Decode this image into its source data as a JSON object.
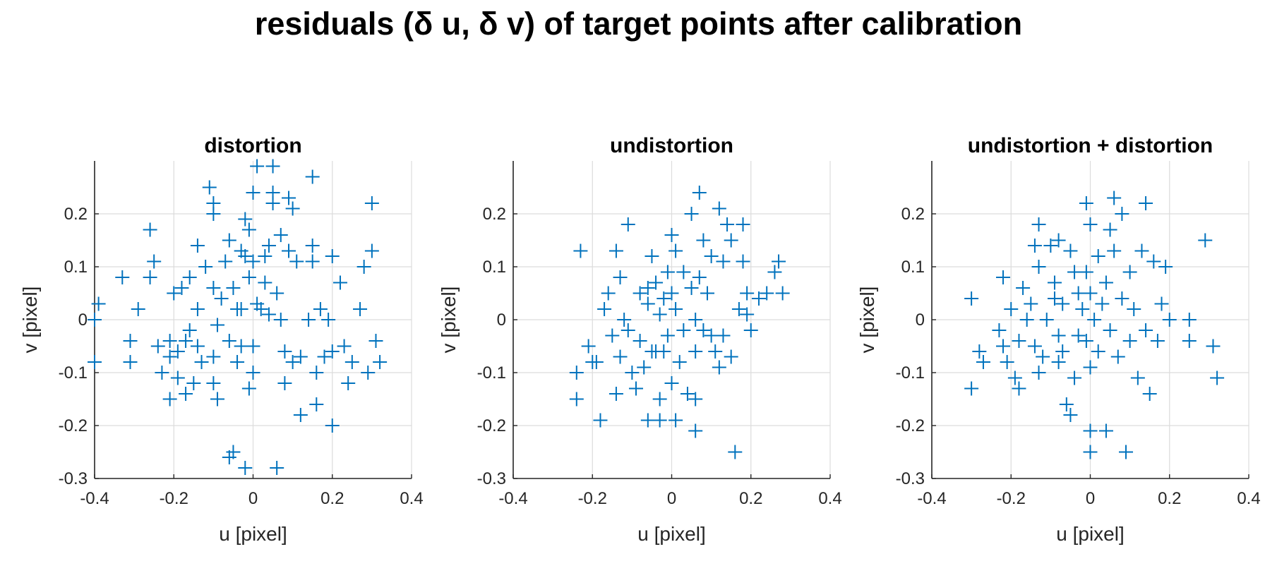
{
  "figure": {
    "suptitle": "residuals (δ u, δ v) of target points after calibration"
  },
  "colors": {
    "marker": "#0072BD",
    "grid": "#dcdcdc",
    "axis": "#262626",
    "text": "#262626"
  },
  "chart_data": [
    {
      "type": "scatter",
      "marker": "plus",
      "title": "distortion",
      "xlabel": "u [pixel]",
      "ylabel": "v [pixel]",
      "xlim": [
        -0.4,
        0.4
      ],
      "ylim": [
        -0.3,
        0.3
      ],
      "xticks": [
        -0.4,
        -0.2,
        0,
        0.2,
        0.4
      ],
      "yticks": [
        -0.3,
        -0.2,
        -0.1,
        0,
        0.1,
        0.2
      ],
      "xtick_labels": [
        "-0.4",
        "-0.2",
        "0",
        "0.2",
        "0.4"
      ],
      "ytick_labels": [
        "-0.3",
        "-0.2",
        "-0.1",
        "0",
        "0.1",
        "0.2"
      ],
      "grid": true,
      "points": [
        [
          -0.39,
          0.03
        ],
        [
          -0.4,
          0.0
        ],
        [
          -0.4,
          -0.08
        ],
        [
          -0.33,
          0.08
        ],
        [
          -0.31,
          -0.04
        ],
        [
          -0.31,
          -0.08
        ],
        [
          -0.29,
          0.02
        ],
        [
          -0.26,
          0.17
        ],
        [
          -0.26,
          0.08
        ],
        [
          -0.25,
          0.11
        ],
        [
          -0.24,
          -0.05
        ],
        [
          -0.23,
          -0.1
        ],
        [
          -0.21,
          -0.04
        ],
        [
          -0.21,
          -0.07
        ],
        [
          -0.21,
          -0.15
        ],
        [
          -0.2,
          0.05
        ],
        [
          -0.19,
          -0.06
        ],
        [
          -0.19,
          -0.11
        ],
        [
          -0.18,
          0.06
        ],
        [
          -0.17,
          -0.04
        ],
        [
          -0.17,
          -0.14
        ],
        [
          -0.16,
          0.08
        ],
        [
          -0.16,
          -0.02
        ],
        [
          -0.15,
          -0.12
        ],
        [
          -0.14,
          -0.05
        ],
        [
          -0.14,
          0.02
        ],
        [
          -0.14,
          0.14
        ],
        [
          -0.13,
          -0.08
        ],
        [
          -0.12,
          0.1
        ],
        [
          -0.11,
          0.25
        ],
        [
          -0.1,
          0.22
        ],
        [
          -0.1,
          0.2
        ],
        [
          -0.1,
          0.06
        ],
        [
          -0.1,
          -0.07
        ],
        [
          -0.1,
          -0.12
        ],
        [
          -0.09,
          -0.15
        ],
        [
          -0.09,
          -0.01
        ],
        [
          -0.08,
          0.04
        ],
        [
          -0.07,
          0.11
        ],
        [
          -0.06,
          0.15
        ],
        [
          -0.06,
          -0.04
        ],
        [
          -0.06,
          -0.26
        ],
        [
          -0.05,
          -0.25
        ],
        [
          -0.05,
          0.06
        ],
        [
          -0.04,
          0.02
        ],
        [
          -0.04,
          -0.08
        ],
        [
          -0.03,
          0.13
        ],
        [
          -0.03,
          0.02
        ],
        [
          -0.03,
          -0.05
        ],
        [
          -0.02,
          0.19
        ],
        [
          -0.02,
          0.12
        ],
        [
          -0.02,
          -0.28
        ],
        [
          -0.01,
          0.17
        ],
        [
          -0.01,
          0.08
        ],
        [
          -0.01,
          -0.13
        ],
        [
          0.0,
          0.24
        ],
        [
          0.0,
          0.11
        ],
        [
          0.0,
          -0.05
        ],
        [
          0.0,
          -0.1
        ],
        [
          0.01,
          0.29
        ],
        [
          0.01,
          0.03
        ],
        [
          0.02,
          0.02
        ],
        [
          0.03,
          0.12
        ],
        [
          0.03,
          0.07
        ],
        [
          0.04,
          0.14
        ],
        [
          0.04,
          0.01
        ],
        [
          0.05,
          0.29
        ],
        [
          0.05,
          0.24
        ],
        [
          0.05,
          0.22
        ],
        [
          0.06,
          0.05
        ],
        [
          0.06,
          -0.28
        ],
        [
          0.07,
          0.16
        ],
        [
          0.07,
          0.0
        ],
        [
          0.08,
          -0.06
        ],
        [
          0.08,
          -0.12
        ],
        [
          0.09,
          0.23
        ],
        [
          0.09,
          0.13
        ],
        [
          0.1,
          0.21
        ],
        [
          0.1,
          -0.08
        ],
        [
          0.11,
          0.11
        ],
        [
          0.12,
          -0.07
        ],
        [
          0.12,
          -0.18
        ],
        [
          0.14,
          0.0
        ],
        [
          0.15,
          0.27
        ],
        [
          0.15,
          0.14
        ],
        [
          0.15,
          0.11
        ],
        [
          0.16,
          -0.1
        ],
        [
          0.16,
          -0.16
        ],
        [
          0.17,
          0.02
        ],
        [
          0.18,
          -0.07
        ],
        [
          0.19,
          0.0
        ],
        [
          0.2,
          0.12
        ],
        [
          0.2,
          -0.06
        ],
        [
          0.2,
          -0.2
        ],
        [
          0.22,
          0.07
        ],
        [
          0.23,
          -0.05
        ],
        [
          0.24,
          -0.12
        ],
        [
          0.25,
          -0.08
        ],
        [
          0.27,
          0.02
        ],
        [
          0.28,
          0.1
        ],
        [
          0.29,
          -0.1
        ],
        [
          0.3,
          0.22
        ],
        [
          0.3,
          0.13
        ],
        [
          0.31,
          -0.04
        ],
        [
          0.32,
          -0.08
        ]
      ]
    },
    {
      "type": "scatter",
      "marker": "plus",
      "title": "undistortion",
      "xlabel": "u [pixel]",
      "ylabel": "v [pixel]",
      "xlim": [
        -0.4,
        0.4
      ],
      "ylim": [
        -0.3,
        0.3
      ],
      "xticks": [
        -0.4,
        -0.2,
        0,
        0.2,
        0.4
      ],
      "yticks": [
        -0.3,
        -0.2,
        -0.1,
        0,
        0.1,
        0.2
      ],
      "xtick_labels": [
        "-0.4",
        "-0.2",
        "0",
        "0.2",
        "0.4"
      ],
      "ytick_labels": [
        "-0.3",
        "-0.2",
        "-0.1",
        "0",
        "0.1",
        "0.2"
      ],
      "grid": true,
      "points": [
        [
          -0.23,
          0.13
        ],
        [
          -0.24,
          -0.1
        ],
        [
          -0.24,
          -0.15
        ],
        [
          -0.21,
          -0.05
        ],
        [
          -0.2,
          -0.08
        ],
        [
          -0.19,
          -0.08
        ],
        [
          -0.18,
          -0.19
        ],
        [
          -0.17,
          0.02
        ],
        [
          -0.16,
          0.05
        ],
        [
          -0.15,
          -0.03
        ],
        [
          -0.14,
          0.13
        ],
        [
          -0.14,
          -0.14
        ],
        [
          -0.13,
          0.08
        ],
        [
          -0.13,
          -0.07
        ],
        [
          -0.12,
          0.0
        ],
        [
          -0.11,
          0.18
        ],
        [
          -0.11,
          -0.02
        ],
        [
          -0.1,
          -0.1
        ],
        [
          -0.09,
          -0.13
        ],
        [
          -0.08,
          0.05
        ],
        [
          -0.08,
          -0.04
        ],
        [
          -0.07,
          -0.09
        ],
        [
          -0.06,
          0.03
        ],
        [
          -0.06,
          0.06
        ],
        [
          -0.06,
          -0.19
        ],
        [
          -0.05,
          0.12
        ],
        [
          -0.05,
          -0.06
        ],
        [
          -0.04,
          -0.06
        ],
        [
          -0.04,
          0.07
        ],
        [
          -0.03,
          0.01
        ],
        [
          -0.03,
          -0.15
        ],
        [
          -0.03,
          -0.19
        ],
        [
          -0.02,
          0.04
        ],
        [
          -0.02,
          -0.06
        ],
        [
          -0.01,
          0.09
        ],
        [
          -0.01,
          -0.03
        ],
        [
          0.0,
          0.16
        ],
        [
          0.0,
          0.05
        ],
        [
          0.0,
          -0.12
        ],
        [
          0.01,
          0.13
        ],
        [
          0.01,
          0.02
        ],
        [
          0.01,
          -0.19
        ],
        [
          0.02,
          -0.08
        ],
        [
          0.03,
          0.09
        ],
        [
          0.03,
          -0.02
        ],
        [
          0.04,
          -0.14
        ],
        [
          0.05,
          0.2
        ],
        [
          0.05,
          0.06
        ],
        [
          0.06,
          0.0
        ],
        [
          0.06,
          -0.06
        ],
        [
          0.06,
          -0.15
        ],
        [
          0.06,
          -0.21
        ],
        [
          0.07,
          0.24
        ],
        [
          0.07,
          0.08
        ],
        [
          0.08,
          0.15
        ],
        [
          0.08,
          -0.02
        ],
        [
          0.09,
          0.05
        ],
        [
          0.1,
          0.12
        ],
        [
          0.1,
          -0.03
        ],
        [
          0.11,
          -0.06
        ],
        [
          0.12,
          0.21
        ],
        [
          0.12,
          -0.09
        ],
        [
          0.13,
          0.11
        ],
        [
          0.13,
          -0.03
        ],
        [
          0.14,
          0.18
        ],
        [
          0.15,
          0.15
        ],
        [
          0.15,
          -0.07
        ],
        [
          0.16,
          -0.25
        ],
        [
          0.17,
          0.02
        ],
        [
          0.18,
          0.18
        ],
        [
          0.18,
          0.11
        ],
        [
          0.19,
          0.05
        ],
        [
          0.19,
          0.01
        ],
        [
          0.2,
          -0.02
        ],
        [
          0.22,
          0.04
        ],
        [
          0.24,
          0.05
        ],
        [
          0.26,
          0.09
        ],
        [
          0.27,
          0.11
        ],
        [
          0.28,
          0.05
        ]
      ]
    },
    {
      "type": "scatter",
      "marker": "plus",
      "title": "undistortion + distortion",
      "xlabel": "u [pixel]",
      "ylabel": "v [pixel]",
      "xlim": [
        -0.4,
        0.4
      ],
      "ylim": [
        -0.3,
        0.3
      ],
      "xticks": [
        -0.4,
        -0.2,
        0,
        0.2,
        0.4
      ],
      "yticks": [
        -0.3,
        -0.2,
        -0.1,
        0,
        0.1,
        0.2
      ],
      "xtick_labels": [
        "-0.4",
        "-0.2",
        "0",
        "0.2",
        "0.4"
      ],
      "ytick_labels": [
        "-0.3",
        "-0.2",
        "-0.1",
        "0",
        "0.1",
        "0.2"
      ],
      "grid": true,
      "points": [
        [
          -0.3,
          0.04
        ],
        [
          -0.3,
          -0.13
        ],
        [
          -0.28,
          -0.06
        ],
        [
          -0.27,
          -0.08
        ],
        [
          -0.23,
          -0.02
        ],
        [
          -0.22,
          0.08
        ],
        [
          -0.22,
          -0.05
        ],
        [
          -0.21,
          -0.08
        ],
        [
          -0.2,
          0.02
        ],
        [
          -0.19,
          -0.11
        ],
        [
          -0.18,
          -0.13
        ],
        [
          -0.18,
          -0.04
        ],
        [
          -0.17,
          0.06
        ],
        [
          -0.16,
          0.0
        ],
        [
          -0.15,
          0.03
        ],
        [
          -0.14,
          0.14
        ],
        [
          -0.14,
          -0.05
        ],
        [
          -0.13,
          0.18
        ],
        [
          -0.13,
          0.1
        ],
        [
          -0.13,
          -0.1
        ],
        [
          -0.12,
          -0.07
        ],
        [
          -0.11,
          0.0
        ],
        [
          -0.1,
          0.14
        ],
        [
          -0.09,
          0.07
        ],
        [
          -0.09,
          0.04
        ],
        [
          -0.08,
          0.15
        ],
        [
          -0.08,
          -0.03
        ],
        [
          -0.08,
          -0.08
        ],
        [
          -0.07,
          0.03
        ],
        [
          -0.07,
          -0.06
        ],
        [
          -0.06,
          -0.16
        ],
        [
          -0.05,
          0.13
        ],
        [
          -0.05,
          -0.18
        ],
        [
          -0.04,
          0.09
        ],
        [
          -0.04,
          -0.11
        ],
        [
          -0.03,
          0.05
        ],
        [
          -0.03,
          -0.03
        ],
        [
          -0.02,
          0.02
        ],
        [
          -0.01,
          0.22
        ],
        [
          -0.01,
          0.09
        ],
        [
          -0.01,
          -0.04
        ],
        [
          0.0,
          0.18
        ],
        [
          0.0,
          0.05
        ],
        [
          0.0,
          -0.09
        ],
        [
          0.0,
          -0.21
        ],
        [
          0.0,
          -0.25
        ],
        [
          0.01,
          0.0
        ],
        [
          0.02,
          0.12
        ],
        [
          0.02,
          -0.06
        ],
        [
          0.03,
          0.03
        ],
        [
          0.04,
          0.07
        ],
        [
          0.04,
          -0.21
        ],
        [
          0.05,
          0.17
        ],
        [
          0.05,
          -0.02
        ],
        [
          0.06,
          0.23
        ],
        [
          0.06,
          0.13
        ],
        [
          0.07,
          -0.07
        ],
        [
          0.08,
          0.2
        ],
        [
          0.08,
          0.04
        ],
        [
          0.09,
          -0.25
        ],
        [
          0.1,
          0.09
        ],
        [
          0.1,
          -0.04
        ],
        [
          0.11,
          0.02
        ],
        [
          0.12,
          -0.11
        ],
        [
          0.13,
          0.13
        ],
        [
          0.14,
          0.22
        ],
        [
          0.14,
          -0.02
        ],
        [
          0.15,
          -0.14
        ],
        [
          0.16,
          0.11
        ],
        [
          0.17,
          -0.04
        ],
        [
          0.18,
          0.03
        ],
        [
          0.19,
          0.1
        ],
        [
          0.2,
          0.0
        ],
        [
          0.25,
          0.0
        ],
        [
          0.25,
          -0.04
        ],
        [
          0.29,
          0.15
        ],
        [
          0.31,
          -0.05
        ],
        [
          0.32,
          -0.11
        ]
      ]
    }
  ]
}
